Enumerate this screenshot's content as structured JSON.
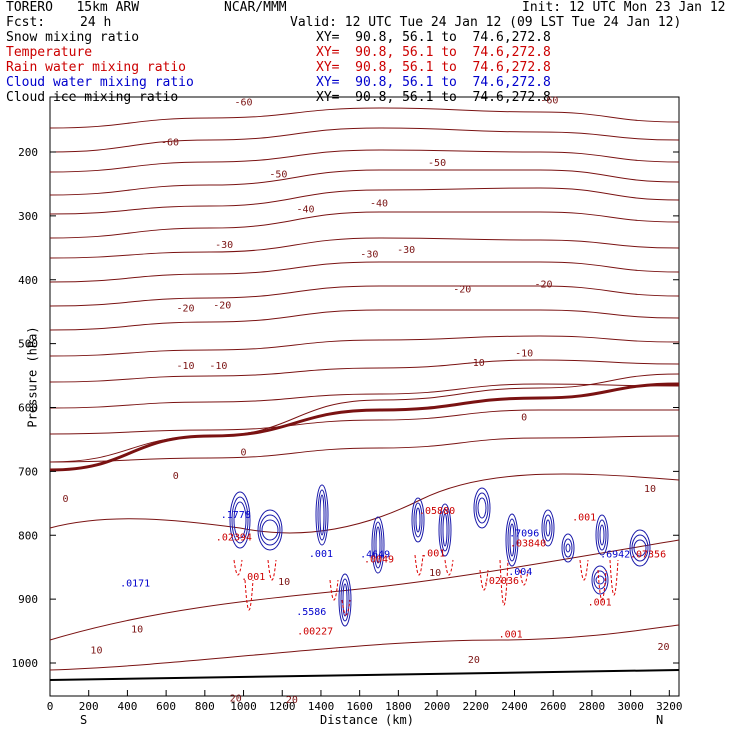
{
  "header": {
    "model": "TORERO   15km ARW",
    "center": "NCAR/MMM",
    "init": "Init: 12 UTC Mon 23 Jan 12",
    "fcst_label": "Fcst:",
    "fcst_value": "24 h",
    "valid": "Valid: 12 UTC Tue 24 Jan 12 (09 LST Tue 24 Jan 12)"
  },
  "legend": [
    {
      "name": "Snow mixing ratio",
      "color": "#000000",
      "coords": ""
    },
    {
      "name": "Temperature",
      "color": "#cc0000",
      "coords": "XY=  90.8, 56.1 to  74.6,272.8"
    },
    {
      "name": "Rain water mixing ratio",
      "color": "#cc0000",
      "coords": "XY=  90.8, 56.1 to  74.6,272.8"
    },
    {
      "name": "Cloud water mixing ratio",
      "color": "#0000cc",
      "coords": "XY=  90.8, 56.1 to  74.6,272.8"
    },
    {
      "name": "Cloud ice mixing ratio",
      "color": "#000000",
      "coords": "XY=  90.8, 56.1 to  74.6,272.8"
    }
  ],
  "snow_coords": "XY=  90.8, 56.1 to  74.6,272.8",
  "axes": {
    "xlabel": "Distance (km)",
    "ylabel": "Pressure (hPa)",
    "south": "S",
    "north": "N"
  },
  "chart_data": {
    "type": "contour cross-section",
    "xlim": [
      0,
      3250
    ],
    "ylim": [
      1035,
      100
    ],
    "x_ticks": [
      0,
      200,
      400,
      600,
      800,
      1000,
      1200,
      1400,
      1600,
      1800,
      2000,
      2200,
      2400,
      2600,
      2800,
      3000,
      3200
    ],
    "y_ticks": [
      200,
      300,
      400,
      500,
      600,
      700,
      800,
      900,
      1000
    ],
    "temperature_labels": [
      {
        "x": 1000,
        "p": 127,
        "text": "-60"
      },
      {
        "x": 2580,
        "p": 124,
        "text": "-60"
      },
      {
        "x": 620,
        "p": 190,
        "text": "-60"
      },
      {
        "x": 1180,
        "p": 240,
        "text": "-50"
      },
      {
        "x": 2000,
        "p": 222,
        "text": "-50"
      },
      {
        "x": 1320,
        "p": 295,
        "text": "-40"
      },
      {
        "x": 1700,
        "p": 285,
        "text": "-40"
      },
      {
        "x": 900,
        "p": 350,
        "text": "-30"
      },
      {
        "x": 1650,
        "p": 365,
        "text": "-30"
      },
      {
        "x": 1840,
        "p": 358,
        "text": "-30"
      },
      {
        "x": 700,
        "p": 450,
        "text": "-20"
      },
      {
        "x": 890,
        "p": 445,
        "text": "-20"
      },
      {
        "x": 2130,
        "p": 420,
        "text": "-20"
      },
      {
        "x": 2550,
        "p": 412,
        "text": "-20"
      },
      {
        "x": 700,
        "p": 540,
        "text": "-10"
      },
      {
        "x": 870,
        "p": 540,
        "text": "-10"
      },
      {
        "x": 2200,
        "p": 535,
        "text": "-10"
      },
      {
        "x": 2450,
        "p": 520,
        "text": "-10"
      },
      {
        "x": 2450,
        "p": 620,
        "text": "0"
      },
      {
        "x": 1000,
        "p": 675,
        "text": "0"
      },
      {
        "x": 650,
        "p": 712,
        "text": "0"
      },
      {
        "x": 80,
        "p": 748,
        "text": "0"
      },
      {
        "x": 3100,
        "p": 732,
        "text": "10"
      },
      {
        "x": 1990,
        "p": 864,
        "text": "10"
      },
      {
        "x": 1210,
        "p": 878,
        "text": "10"
      },
      {
        "x": 450,
        "p": 952,
        "text": "10"
      },
      {
        "x": 240,
        "p": 985,
        "text": "10"
      },
      {
        "x": 2190,
        "p": 1000,
        "text": "20"
      },
      {
        "x": 3170,
        "p": 980,
        "text": "20"
      },
      {
        "x": 960,
        "p": 1060,
        "text": "20"
      },
      {
        "x": 1250,
        "p": 1063,
        "text": "20"
      }
    ],
    "mixing_ratio_annotations": [
      {
        "x": 440,
        "p": 880,
        "text": ".0171",
        "color": "#0000cc"
      },
      {
        "x": 960,
        "p": 773,
        "text": ".1778",
        "color": "#0000cc"
      },
      {
        "x": 950,
        "p": 808,
        "text": ".02394",
        "color": "#cc0000"
      },
      {
        "x": 1050,
        "p": 870,
        "text": ".001",
        "color": "#cc0000"
      },
      {
        "x": 1400,
        "p": 834,
        "text": ".001",
        "color": "#0000cc"
      },
      {
        "x": 1350,
        "p": 925,
        "text": ".5586",
        "color": "#0000cc"
      },
      {
        "x": 1370,
        "p": 955,
        "text": ".00227",
        "color": "#cc0000"
      },
      {
        "x": 1680,
        "p": 835,
        "text": ".4649",
        "color": "#0000cc"
      },
      {
        "x": 1700,
        "p": 843,
        "text": ".0049",
        "color": "#cc0000"
      },
      {
        "x": 2000,
        "p": 767,
        "text": ".05880",
        "color": "#cc0000"
      },
      {
        "x": 1980,
        "p": 833,
        "text": ".001",
        "color": "#cc0000"
      },
      {
        "x": 2450,
        "p": 802,
        "text": ".7096",
        "color": "#0000cc"
      },
      {
        "x": 2470,
        "p": 818,
        "text": ".03840",
        "color": "#cc0000"
      },
      {
        "x": 2430,
        "p": 862,
        "text": ".004",
        "color": "#0000cc"
      },
      {
        "x": 2330,
        "p": 876,
        "text": ".02036",
        "color": "#cc0000"
      },
      {
        "x": 2380,
        "p": 960,
        "text": ".001",
        "color": "#cc0000"
      },
      {
        "x": 2760,
        "p": 777,
        "text": ".001",
        "color": "#cc0000"
      },
      {
        "x": 2920,
        "p": 835,
        "text": ".6942",
        "color": "#0000cc"
      },
      {
        "x": 3090,
        "p": 835,
        "text": ".07356",
        "color": "#cc0000"
      },
      {
        "x": 2840,
        "p": 910,
        "text": ".001",
        "color": "#cc0000"
      }
    ]
  }
}
